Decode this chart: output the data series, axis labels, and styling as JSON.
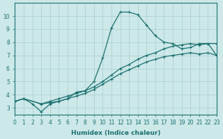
{
  "xlabel": "Humidex (Indice chaleur)",
  "bg_color": "#cce8e8",
  "grid_color": "#aacccc",
  "line_color": "#1a7070",
  "xlim": [
    0,
    23
  ],
  "ylim": [
    2.5,
    11
  ],
  "yticks": [
    3,
    4,
    5,
    6,
    7,
    8,
    9,
    10
  ],
  "xticks": [
    0,
    1,
    2,
    3,
    4,
    5,
    6,
    7,
    8,
    9,
    10,
    11,
    12,
    13,
    14,
    15,
    16,
    17,
    18,
    19,
    20,
    21,
    22,
    23
  ],
  "series": [
    {
      "x": [
        0,
        1,
        2,
        3,
        4,
        5,
        6,
        7,
        8,
        9,
        10,
        11,
        12,
        13,
        14,
        15,
        16,
        17,
        18,
        19,
        20,
        21,
        22,
        23
      ],
      "y": [
        3.5,
        3.7,
        3.3,
        2.7,
        3.3,
        3.5,
        3.7,
        4.2,
        4.3,
        5.0,
        6.8,
        9.1,
        10.3,
        10.3,
        10.1,
        9.3,
        8.5,
        8.0,
        7.9,
        7.5,
        7.6,
        7.9,
        7.9,
        7.0
      ]
    },
    {
      "x": [
        0,
        1,
        3,
        4,
        5,
        6,
        7,
        8,
        9,
        10,
        11,
        12,
        13,
        14,
        15,
        16,
        17,
        18,
        19,
        20,
        21,
        22,
        23
      ],
      "y": [
        3.5,
        3.7,
        3.3,
        3.5,
        3.7,
        3.9,
        4.1,
        4.3,
        4.6,
        5.0,
        5.5,
        6.0,
        6.3,
        6.7,
        7.0,
        7.2,
        7.5,
        7.7,
        7.8,
        7.9,
        7.8,
        7.9,
        7.9
      ]
    },
    {
      "x": [
        0,
        1,
        3,
        4,
        5,
        6,
        7,
        8,
        9,
        10,
        11,
        12,
        13,
        14,
        15,
        16,
        17,
        18,
        19,
        20,
        21,
        22,
        23
      ],
      "y": [
        3.5,
        3.7,
        3.3,
        3.4,
        3.5,
        3.7,
        3.9,
        4.1,
        4.4,
        4.8,
        5.2,
        5.6,
        5.9,
        6.2,
        6.5,
        6.7,
        6.9,
        7.0,
        7.1,
        7.2,
        7.1,
        7.2,
        7.0
      ]
    }
  ]
}
